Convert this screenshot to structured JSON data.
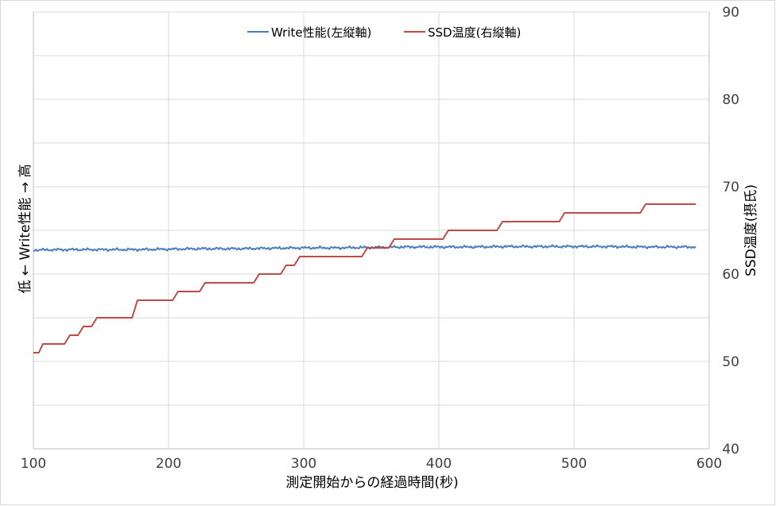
{
  "chart_data": {
    "type": "line",
    "xlabel": "測定開始からの経過時間(秒)",
    "ylabel_left": "低 ← Write性能 → 高",
    "ylabel_right": "SSD温度(摂氏)",
    "xlim": [
      100,
      600
    ],
    "x_ticks": [
      "100",
      "200",
      "300",
      "400",
      "500",
      "600"
    ],
    "y_right_lim": [
      40,
      90
    ],
    "y_right_ticks": [
      "40",
      "50",
      "60",
      "70",
      "80",
      "90"
    ],
    "y_left_lim": [
      0,
      1
    ],
    "grid": true,
    "legend_position": "top",
    "series": [
      {
        "name": "Write性能(左縦軸)",
        "axis": "left",
        "color": "#4a7ebb",
        "x": [
          100,
          125,
          150,
          175,
          200,
          225,
          250,
          275,
          300,
          325,
          350,
          375,
          400,
          425,
          450,
          475,
          500,
          525,
          550,
          575,
          590
        ],
        "values": [
          0.455,
          0.456,
          0.456,
          0.456,
          0.457,
          0.458,
          0.458,
          0.459,
          0.46,
          0.46,
          0.461,
          0.462,
          0.462,
          0.462,
          0.463,
          0.463,
          0.463,
          0.463,
          0.462,
          0.462,
          0.462
        ]
      },
      {
        "name": "SSD温度(右縦軸)",
        "axis": "right",
        "color": "#be4b48",
        "x": [
          100,
          104,
          107,
          123,
          127,
          133,
          137,
          143,
          147,
          173,
          177,
          203,
          207,
          223,
          227,
          263,
          267,
          283,
          287,
          293,
          297,
          343,
          347,
          363,
          367,
          403,
          407,
          443,
          447,
          489,
          493,
          549,
          553,
          590
        ],
        "values": [
          51,
          51,
          52,
          52,
          53,
          53,
          54,
          54,
          55,
          55,
          57,
          57,
          58,
          58,
          59,
          59,
          60,
          60,
          61,
          61,
          62,
          62,
          63,
          63,
          64,
          64,
          65,
          65,
          66,
          66,
          67,
          67,
          68,
          68
        ]
      }
    ]
  }
}
